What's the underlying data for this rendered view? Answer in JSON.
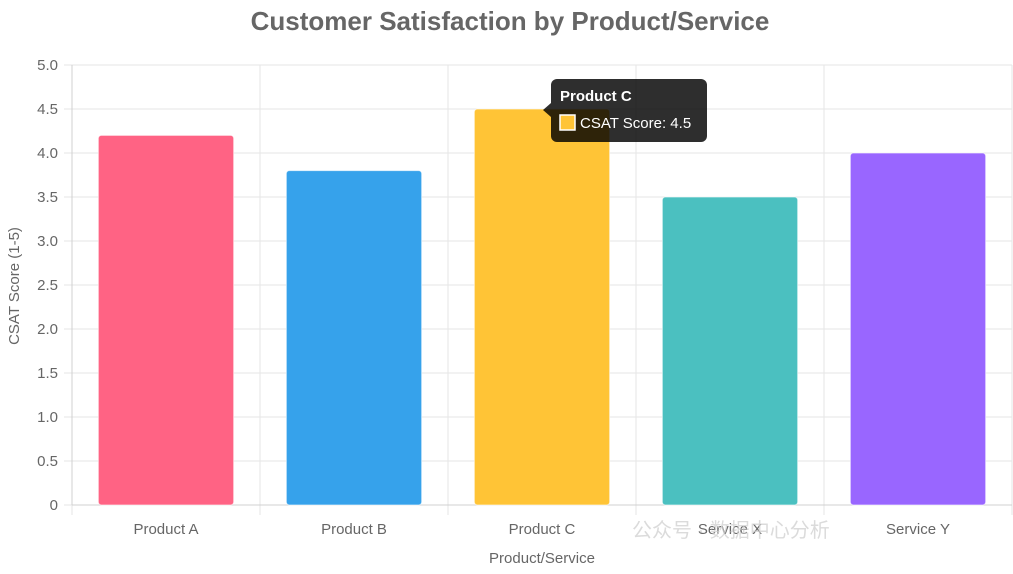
{
  "chart_data": {
    "type": "bar",
    "title": "Customer Satisfaction by Product/Service",
    "xlabel": "Product/Service",
    "ylabel": "CSAT Score (1-5)",
    "categories": [
      "Product A",
      "Product B",
      "Product C",
      "Service X",
      "Service Y"
    ],
    "series": [
      {
        "name": "CSAT Score",
        "values": [
          4.2,
          3.8,
          4.5,
          3.5,
          4.0
        ],
        "colors": [
          "#ff6384",
          "#36a2eb",
          "#ffc436",
          "#4bc0c0",
          "#9966ff"
        ]
      }
    ],
    "ylim": [
      0,
      5
    ],
    "yticks": [
      "0",
      "0.5",
      "1.0",
      "1.5",
      "2.0",
      "2.5",
      "3.0",
      "3.5",
      "4.0",
      "4.5",
      "5.0"
    ],
    "grid": true,
    "legend": "none"
  },
  "tooltip": {
    "title": "Product C",
    "label": "CSAT Score: 4.5",
    "swatch_color": "#ffc436"
  },
  "watermark": "公众号 · 数据中心分析"
}
